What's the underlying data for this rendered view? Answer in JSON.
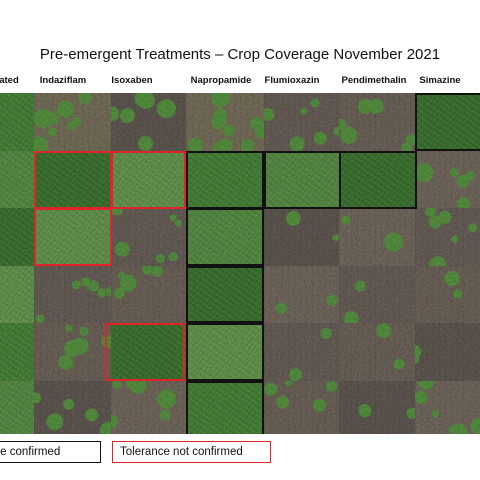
{
  "title": "Pre-emergent Treatments – Crop Coverage November 2021",
  "columns": [
    {
      "label": "ated"
    },
    {
      "label": "Indaziflam"
    },
    {
      "label": "Isoxaben"
    },
    {
      "label": "Napropamide"
    },
    {
      "label": "Flumioxazin"
    },
    {
      "label": "Pendimethalin"
    },
    {
      "label": "Simazine"
    }
  ],
  "legend": {
    "confirmed": "nce confirmed",
    "not_confirmed": "Tolerance not confirmed"
  },
  "colors": {
    "confirmed_border": "#111111",
    "not_confirmed_border": "#e0252a",
    "plant_green": "#4f8a3b",
    "soil_brown": "#6e655d"
  }
}
